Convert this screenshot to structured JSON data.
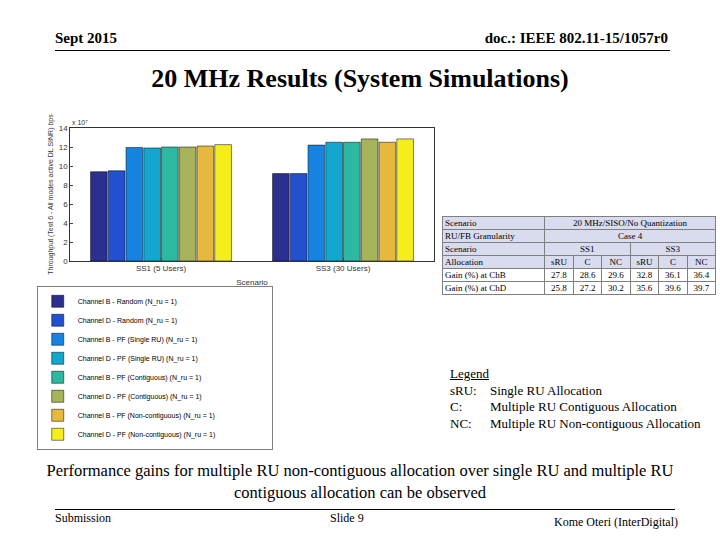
{
  "header": {
    "date": "Sept 2015",
    "doc": "doc.: IEEE 802.11-15/1057r0"
  },
  "title": "20 MHz Results (System Simulations)",
  "chart_data": {
    "type": "bar",
    "xlabel": "Scenario",
    "ylabel": "Throughput (Test 6 - All modes active DL SINR) bps",
    "annotations": [
      "x 10⁷"
    ],
    "categories": [
      "SS1 (5 Users)",
      "SS3 (30 Users)"
    ],
    "series": [
      {
        "name": "Channel B - Random (N_ru = 1)",
        "color": "#2b2f8f",
        "values": [
          9.4,
          9.2
        ]
      },
      {
        "name": "Channel D - Random (N_ru = 1)",
        "color": "#2250cf",
        "values": [
          9.5,
          9.2
        ]
      },
      {
        "name": "Channel B - PF (Single RU) (N_ru = 1)",
        "color": "#1683e0",
        "values": [
          11.95,
          12.2
        ]
      },
      {
        "name": "Channel D - PF (Single RU) (N_ru = 1)",
        "color": "#13a6cf",
        "values": [
          11.9,
          12.5
        ]
      },
      {
        "name": "Channel B - PF (Contiguous) (N_ru = 1)",
        "color": "#2db8a2",
        "values": [
          12.0,
          12.5
        ]
      },
      {
        "name": "Channel D - PF (Contiguous) (N_ru = 1)",
        "color": "#a7b35a",
        "values": [
          12.0,
          12.85
        ]
      },
      {
        "name": "Channel B - PF (Non-contiguous) (N_ru = 1)",
        "color": "#e5b93e",
        "values": [
          12.1,
          12.5
        ]
      },
      {
        "name": "Channel D - PF (Non-contiguous) (N_ru = 1)",
        "color": "#f6ee1a",
        "values": [
          12.25,
          12.85
        ]
      }
    ],
    "ylim": [
      0,
      14
    ],
    "yticks": [
      0,
      2,
      4,
      6,
      8,
      10,
      12,
      14
    ],
    "grid": false,
    "legend": "bottom"
  },
  "table": {
    "rows": [
      [
        "Scenario",
        "20 MHz/SISO/No Quantization"
      ],
      [
        "RU/FB Granularity",
        "Case 4"
      ],
      [
        "Scenario",
        "SS1",
        "SS3"
      ],
      [
        "Allocation",
        "sRU",
        "C",
        "NC",
        "sRU",
        "C",
        "NC"
      ],
      [
        "Gain (%) at ChB",
        27.8,
        28.6,
        29.6,
        32.8,
        36.1,
        36.4
      ],
      [
        "Gain (%) at ChD",
        25.8,
        27.2,
        30.2,
        35.6,
        39.6,
        39.7
      ]
    ]
  },
  "legend_box": {
    "title": "Legend",
    "items": [
      {
        "key": "sRU:",
        "text": "Single RU Allocation"
      },
      {
        "key": "C:",
        "text": "Multiple RU Contiguous Allocation"
      },
      {
        "key": "NC:",
        "text": "Multiple RU Non-contiguous Allocation"
      }
    ]
  },
  "caption": "Performance gains for multiple RU non-contiguous allocation over single RU and multiple RU contiguous allocation can be observed",
  "footer": {
    "left": "Submission",
    "center": "Slide 9",
    "right": "Kome Oteri (InterDigital)"
  }
}
